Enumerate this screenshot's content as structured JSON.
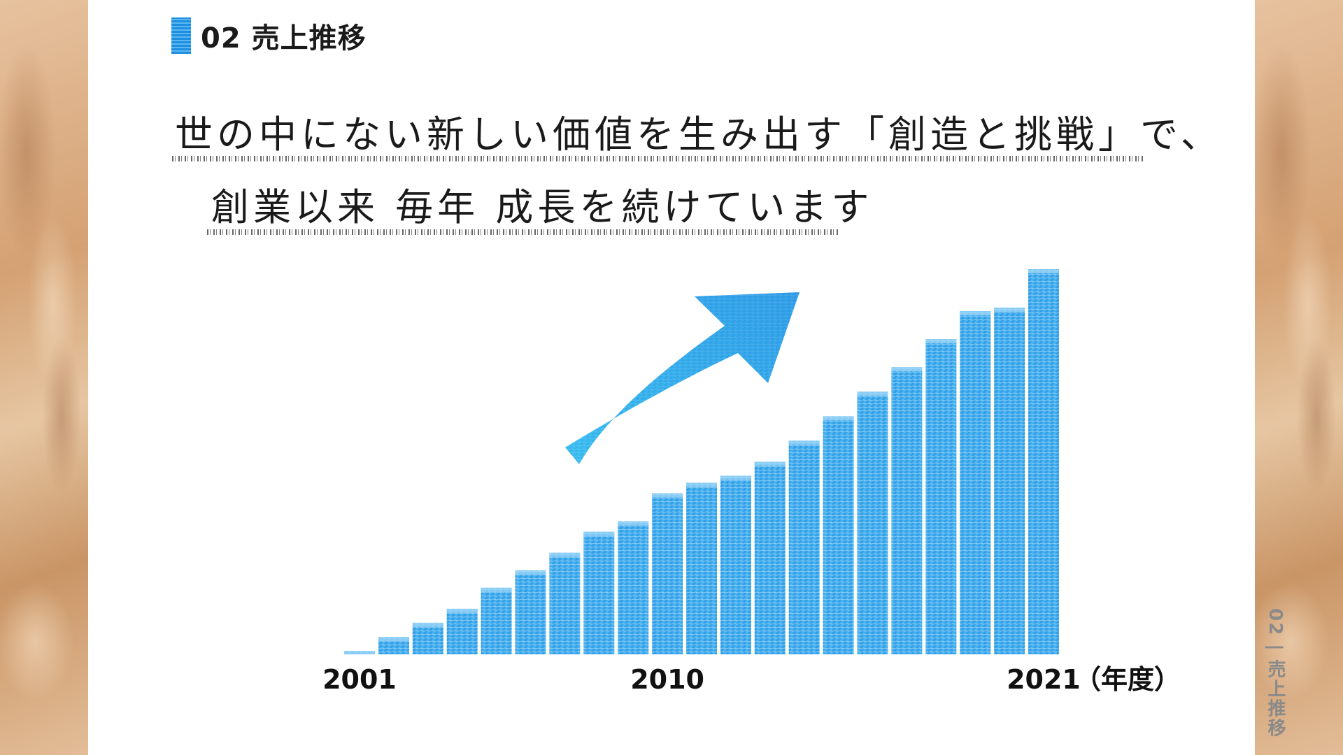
{
  "header": {
    "title": "02 売上推移"
  },
  "headline": {
    "line1": "世の中にない新しい価値を生み出す「創造と挑戦」で、",
    "line2": "創業以来 毎年 成長を続けています"
  },
  "side_label": "02 | 売上推移",
  "colors": {
    "accent": "#1e9be8",
    "bar_light": "#5cc4f5",
    "text": "#1a1a1a"
  },
  "chart_data": {
    "type": "bar",
    "title": "",
    "xlabel": "",
    "ylabel": "",
    "categories": [
      "2001",
      "2002",
      "2003",
      "2004",
      "2005",
      "2006",
      "2007",
      "2008",
      "2009",
      "2010",
      "2011",
      "2012",
      "2013",
      "2014",
      "2015",
      "2016",
      "2017",
      "2018",
      "2019",
      "2020",
      "2021"
    ],
    "values": [
      1,
      5,
      9,
      13,
      19,
      24,
      29,
      35,
      38,
      46,
      49,
      51,
      55,
      61,
      68,
      75,
      82,
      90,
      98,
      99,
      110
    ],
    "tick_labels": [
      "2001",
      "2010",
      "2021"
    ],
    "unit_label": "（年度）",
    "ylim": [
      0,
      110
    ],
    "grid": false,
    "legend": "none",
    "annotation": "upward-arrow-icon"
  }
}
